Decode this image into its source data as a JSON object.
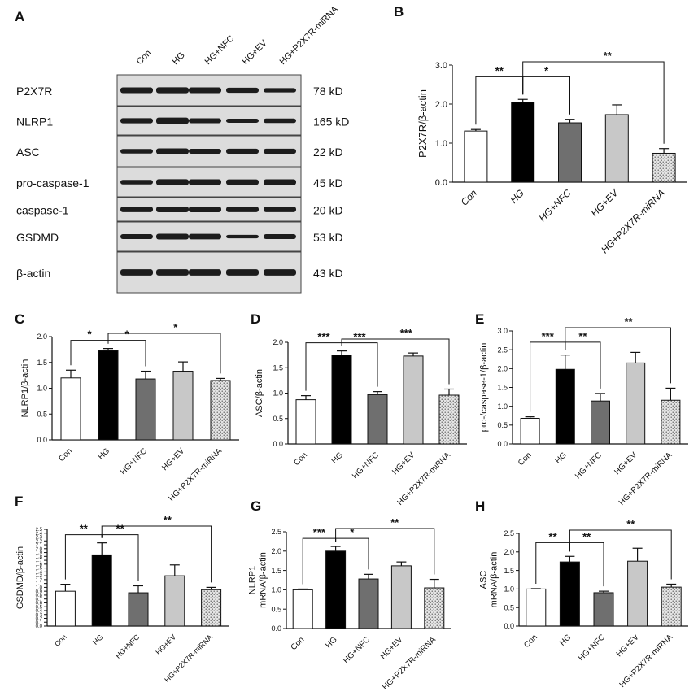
{
  "blot": {
    "panel_label": "A",
    "lanes": [
      "Con",
      "HG",
      "HG+NFC",
      "HG+EV",
      "HG+P2X7R-miRNA"
    ],
    "rows": [
      {
        "protein": "P2X7R",
        "size": "78 kD"
      },
      {
        "protein": "NLRP1",
        "size": "165 kD"
      },
      {
        "protein": "ASC",
        "size": "22 kD"
      },
      {
        "protein": "pro-caspase-1",
        "size": "45 kD"
      },
      {
        "protein": "caspase-1",
        "size": "20 kD"
      },
      {
        "protein": "GSDMD",
        "size": "53 kD"
      },
      {
        "protein": "β-actin",
        "size": "43 kD"
      }
    ]
  },
  "bar_styles": [
    "#ffffff",
    "#000000",
    "#6f6f6f",
    "#c8c8c8",
    "dotted"
  ],
  "chart_data": [
    {
      "panel": "B",
      "type": "bar",
      "categories": [
        "Con",
        "HG",
        "HG+NFC",
        "HG+EV",
        "HG+P2X7R-miRNA"
      ],
      "values": [
        1.31,
        2.05,
        1.52,
        1.73,
        0.74
      ],
      "errors": [
        0.04,
        0.07,
        0.09,
        0.25,
        0.12
      ],
      "ylabel": "P2X7R/β-actin",
      "xlabel": "",
      "ylim": [
        0,
        3.0
      ],
      "yticks": [
        "0.0",
        "1.0",
        "2.0",
        "3.0"
      ],
      "tick_labels_italic": true,
      "significance": [
        {
          "from": 0,
          "to": 1,
          "label": "**"
        },
        {
          "from": 1,
          "to": 2,
          "label": "*"
        },
        {
          "from": 1,
          "to": 4,
          "label": "**"
        }
      ]
    },
    {
      "panel": "C",
      "type": "bar",
      "categories": [
        "Con",
        "HG",
        "HG+NFC",
        "HG+EV",
        "HG+P2X7R-miRNA"
      ],
      "values": [
        1.2,
        1.73,
        1.18,
        1.33,
        1.15
      ],
      "errors": [
        0.15,
        0.04,
        0.15,
        0.18,
        0.04
      ],
      "ylabel": "NLRP1/β-actin",
      "xlabel": "",
      "ylim": [
        0,
        2.0
      ],
      "yticks": [
        "0.0",
        "0.5",
        "1.0",
        "1.5",
        "2.0"
      ],
      "significance": [
        {
          "from": 0,
          "to": 1,
          "label": "*"
        },
        {
          "from": 1,
          "to": 2,
          "label": "*"
        },
        {
          "from": 1,
          "to": 4,
          "label": "*"
        }
      ]
    },
    {
      "panel": "D",
      "type": "bar",
      "categories": [
        "Con",
        "HG",
        "HG+NFC",
        "HG+EV",
        "HG+P2X7R-miRNA"
      ],
      "values": [
        0.87,
        1.75,
        0.97,
        1.73,
        0.96
      ],
      "errors": [
        0.08,
        0.08,
        0.06,
        0.06,
        0.12
      ],
      "ylabel": "ASC/β-actin",
      "xlabel": "",
      "ylim": [
        0,
        2.0
      ],
      "yticks": [
        "0.0",
        "0.5",
        "1.0",
        "1.5",
        "2.0"
      ],
      "significance": [
        {
          "from": 0,
          "to": 1,
          "label": "***"
        },
        {
          "from": 1,
          "to": 2,
          "label": "***"
        },
        {
          "from": 1,
          "to": 4,
          "label": "***"
        }
      ]
    },
    {
      "panel": "E",
      "type": "bar",
      "categories": [
        "Con",
        "HG",
        "HG+NFC",
        "HG+EV",
        "HG+P2X7R-miRNA"
      ],
      "values": [
        0.68,
        1.98,
        1.14,
        2.15,
        1.16
      ],
      "errors": [
        0.04,
        0.38,
        0.2,
        0.28,
        0.32
      ],
      "ylabel": "pro-/caspase-1/β-actin",
      "xlabel": "",
      "ylim": [
        0,
        3.0
      ],
      "yticks": [
        "0.0",
        "0.5",
        "1.0",
        "1.5",
        "2.0",
        "2.5",
        "3.0"
      ],
      "significance": [
        {
          "from": 0,
          "to": 1,
          "label": "***"
        },
        {
          "from": 1,
          "to": 2,
          "label": "**"
        },
        {
          "from": 1,
          "to": 4,
          "label": "**"
        }
      ]
    },
    {
      "panel": "F",
      "type": "bar",
      "categories": [
        "Con",
        "HG",
        "HG+NFC",
        "HG+EV",
        "HG+P2X7R-miRNA"
      ],
      "values": [
        0.9,
        1.84,
        0.86,
        1.3,
        0.94
      ],
      "errors": [
        0.18,
        0.31,
        0.18,
        0.28,
        0.06
      ],
      "ylabel": "GSDMD/β-actin",
      "xlabel": "",
      "ylim": [
        0,
        2.5
      ],
      "yticks": [
        "0.0",
        "0.1",
        "0.2",
        "0.3",
        "0.4",
        "0.5",
        "0.6",
        "0.7",
        "0.8",
        "0.9",
        "1.0",
        "1.1",
        "1.2",
        "1.3",
        "1.4",
        "1.5",
        "1.6",
        "1.7",
        "1.8",
        "1.9",
        "2.0",
        "2.1",
        "2.2",
        "2.3",
        "2.4",
        "2.5"
      ],
      "significance": [
        {
          "from": 0,
          "to": 1,
          "label": "**"
        },
        {
          "from": 1,
          "to": 2,
          "label": "**"
        },
        {
          "from": 1,
          "to": 4,
          "label": "**"
        }
      ]
    },
    {
      "panel": "G",
      "type": "bar",
      "categories": [
        "Con",
        "HG",
        "HG+NFC",
        "HG+EV",
        "HG+P2X7R-miRNA"
      ],
      "values": [
        1.0,
        2.0,
        1.28,
        1.62,
        1.05
      ],
      "errors": [
        0.02,
        0.12,
        0.12,
        0.1,
        0.22
      ],
      "ylabel": [
        "NLRP1",
        "mRNA/β-actin"
      ],
      "xlabel": "",
      "ylim": [
        0,
        2.5
      ],
      "yticks": [
        "0.0",
        "0.5",
        "1.0",
        "1.5",
        "2.0",
        "2.5"
      ],
      "significance": [
        {
          "from": 0,
          "to": 1,
          "label": "***"
        },
        {
          "from": 1,
          "to": 2,
          "label": "*"
        },
        {
          "from": 1,
          "to": 4,
          "label": "**"
        }
      ]
    },
    {
      "panel": "H",
      "type": "bar",
      "categories": [
        "Con",
        "HG",
        "HG+NFC",
        "HG+EV",
        "HG+P2X7R-miRNA"
      ],
      "values": [
        1.0,
        1.73,
        0.9,
        1.75,
        1.05
      ],
      "errors": [
        0.01,
        0.15,
        0.04,
        0.35,
        0.08
      ],
      "ylabel": [
        "ASC",
        "mRNA/β-actin"
      ],
      "xlabel": "",
      "ylim": [
        0,
        2.5
      ],
      "yticks": [
        "0.0",
        "0.5",
        "1.0",
        "1.5",
        "2.0",
        "2.5"
      ],
      "significance": [
        {
          "from": 0,
          "to": 1,
          "label": "**"
        },
        {
          "from": 1,
          "to": 2,
          "label": "**"
        },
        {
          "from": 1,
          "to": 4,
          "label": "**"
        }
      ]
    }
  ]
}
